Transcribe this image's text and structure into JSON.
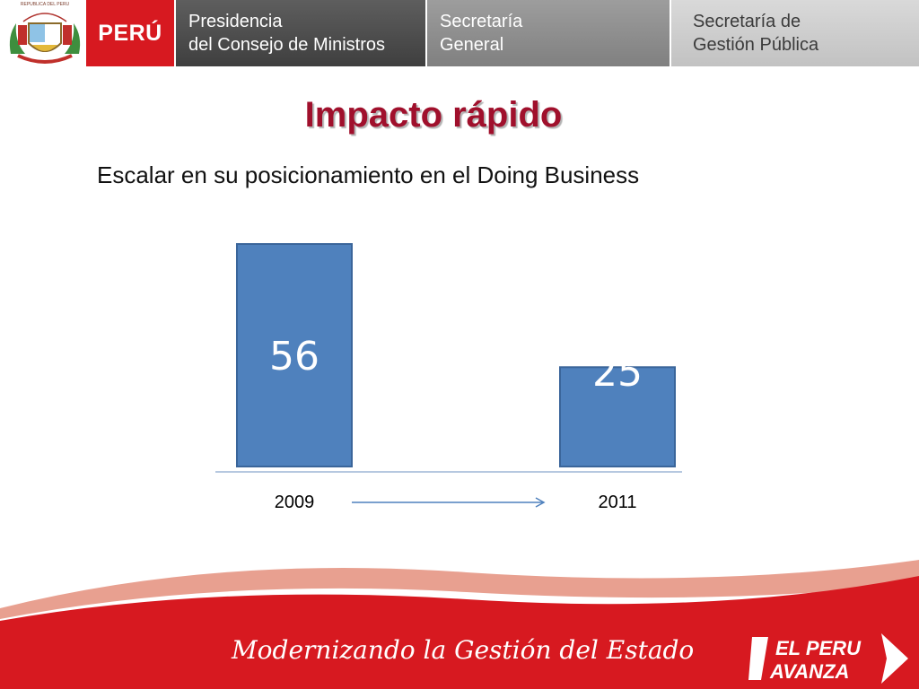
{
  "header": {
    "seal_text": "REPUBLICA DEL PERU",
    "peru": "PERÚ",
    "pcm": [
      "Presidencia",
      "del Consejo de Ministros"
    ],
    "sg": [
      "Secretaría",
      "General"
    ],
    "sgp": [
      "Secretaría de",
      "Gestión Pública"
    ]
  },
  "slide": {
    "title": "Impacto rápido",
    "subtitle": "Escalar en su posicionamiento en el Doing Business"
  },
  "chart_data": {
    "type": "bar",
    "title": "",
    "categories": [
      "2009",
      "2011"
    ],
    "values": [
      56,
      25
    ],
    "ylim": [
      0,
      56
    ],
    "bar_color": "#4f81bd",
    "value_label_color": "#ffffff",
    "arrow_from": "2009",
    "arrow_to": "2011",
    "grid": false
  },
  "footer": {
    "motto": "Modernizando la Gestión del Estado",
    "logo_line1": "EL PERU",
    "logo_line2": "AVANZA",
    "brand_red": "#d71920",
    "accent_salmon": "#e8a090"
  }
}
